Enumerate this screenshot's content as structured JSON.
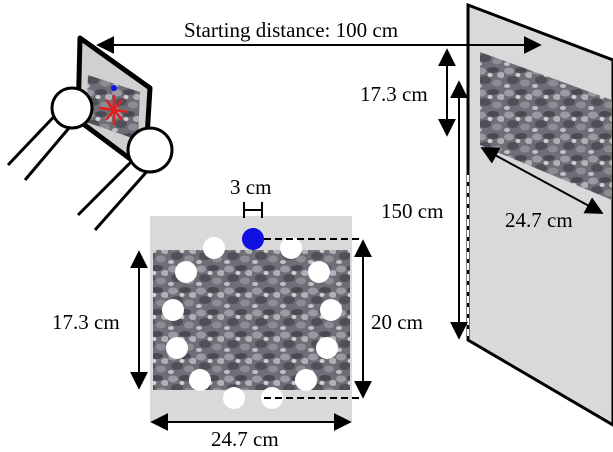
{
  "labels": {
    "starting_distance": "Starting distance: 100 cm",
    "wall_offset": "17.3 cm",
    "height": "150 cm",
    "wall_width": "24.7 cm",
    "circle_size": "3 cm",
    "target_height_left": "17.3 cm",
    "target_height_right": "20 cm",
    "target_width": "24.7 cm"
  },
  "colors": {
    "wall": "#d9d9d9",
    "stand": "#d9d9d9",
    "gravel_dark": "#5a5a62",
    "gravel_light": "#a8a8ae",
    "marker_blue": "#1010e0",
    "marker_white": "#ffffff",
    "cross_red": "#e02020"
  },
  "icons": {
    "monitor": "monitor-head-icon",
    "eyes": "eye-circle-icon",
    "fixation": "blue-dot-icon"
  }
}
